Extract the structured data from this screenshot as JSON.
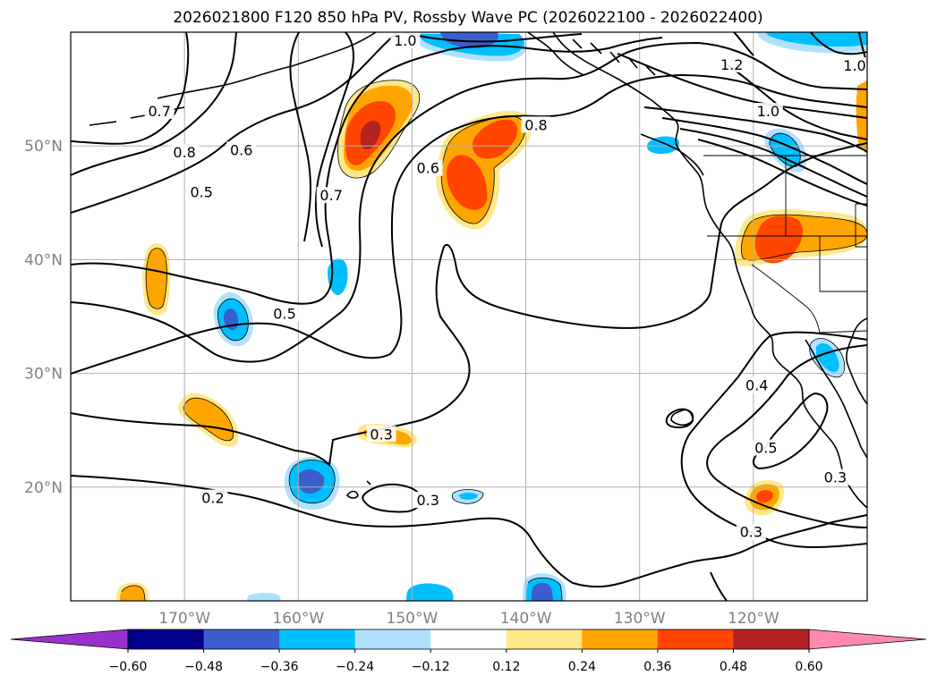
{
  "chart_data": {
    "type": "contour-map",
    "title": "2026021800 F120 850 hPa PV, Rossby Wave PC (2026022100 - 2026022400)",
    "map": {
      "lon_range": [
        -180,
        -110
      ],
      "lat_range": [
        10,
        60
      ],
      "lon_ticks": [
        -170,
        -160,
        -150,
        -140,
        -130,
        -120
      ],
      "lon_tick_labels": [
        "170°W",
        "160°W",
        "150°W",
        "140°W",
        "130°W",
        "120°W"
      ],
      "lat_ticks": [
        20,
        30,
        40,
        50
      ],
      "lat_tick_labels": [
        "20°N",
        "30°N",
        "40°N",
        "50°N"
      ],
      "grid": true
    },
    "pv_contour_labels": [
      {
        "text": "0.2",
        "lon": -167.5,
        "lat": 19.0
      },
      {
        "text": "0.3",
        "lon": -152.7,
        "lat": 24.6
      },
      {
        "text": "0.3",
        "lon": -148.6,
        "lat": 18.8
      },
      {
        "text": "0.3",
        "lon": -120.2,
        "lat": 16.0
      },
      {
        "text": "0.3",
        "lon": -112.8,
        "lat": 20.8
      },
      {
        "text": "0.4",
        "lon": -119.7,
        "lat": 28.9
      },
      {
        "text": "0.5",
        "lon": -161.2,
        "lat": 35.2
      },
      {
        "text": "0.5",
        "lon": -168.5,
        "lat": 45.9
      },
      {
        "text": "0.5",
        "lon": -118.9,
        "lat": 23.4
      },
      {
        "text": "0.6",
        "lon": -148.6,
        "lat": 48.0
      },
      {
        "text": "0.6",
        "lon": -165.0,
        "lat": 49.6
      },
      {
        "text": "0.7",
        "lon": -157.1,
        "lat": 45.6
      },
      {
        "text": "0.7",
        "lon": -172.2,
        "lat": 53.0
      },
      {
        "text": "0.8",
        "lon": -170.0,
        "lat": 49.4
      },
      {
        "text": "0.8",
        "lon": -139.1,
        "lat": 51.8
      },
      {
        "text": "1.0",
        "lon": -118.7,
        "lat": 53.0
      },
      {
        "text": "1.0",
        "lon": -150.6,
        "lat": 59.2
      },
      {
        "text": "1.2",
        "lon": -121.9,
        "lat": 57.1
      },
      {
        "text": "1.0",
        "lon": -111.1,
        "lat": 57.0
      }
    ],
    "colorbar": {
      "levels": [
        -0.6,
        -0.48,
        -0.36,
        -0.24,
        -0.12,
        0.12,
        0.24,
        0.36,
        0.48,
        0.6
      ],
      "tick_labels": [
        "−0.60",
        "−0.48",
        "−0.36",
        "−0.24",
        "−0.12",
        "0.12",
        "0.24",
        "0.36",
        "0.48",
        "0.60"
      ],
      "colors": [
        "#9932cc",
        "#00008b",
        "#3a5fcd",
        "#00bfff",
        "#b0e2ff",
        "#ffffff",
        "#ffe88a",
        "#ffa500",
        "#ff4500",
        "#b22222",
        "#ff88b0"
      ],
      "extend": "both"
    },
    "rossby_pc_anomalies": [
      {
        "sign": "positive",
        "max": 0.48,
        "lon": -153.5,
        "lat": 50.5
      },
      {
        "sign": "positive",
        "max": 0.36,
        "lon": -145.5,
        "lat": 47.0
      },
      {
        "sign": "positive",
        "max": 0.36,
        "lon": -142.8,
        "lat": 50.8
      },
      {
        "sign": "positive",
        "max": 0.36,
        "lon": -117.5,
        "lat": 41.8
      },
      {
        "sign": "positive",
        "max": 0.36,
        "lon": -119.5,
        "lat": 19.0
      },
      {
        "sign": "positive",
        "max": 0.24,
        "lon": -174.3,
        "lat": 38.4
      },
      {
        "sign": "positive",
        "max": 0.24,
        "lon": -167.5,
        "lat": 26.5
      },
      {
        "sign": "positive",
        "max": 0.24,
        "lon": -152.5,
        "lat": 24.5
      },
      {
        "sign": "positive",
        "max": 0.24,
        "lon": -175.5,
        "lat": 11.0
      },
      {
        "sign": "negative",
        "min": -0.48,
        "lon": -163.4,
        "lat": 35.2
      },
      {
        "sign": "negative",
        "min": -0.48,
        "lon": -158.6,
        "lat": 20.5
      },
      {
        "sign": "negative",
        "min": -0.48,
        "lon": -141.8,
        "lat": 11.0
      },
      {
        "sign": "negative",
        "min": -0.36,
        "lon": -116.0,
        "lat": 31.5
      },
      {
        "sign": "negative",
        "min": -0.36,
        "lon": -118.2,
        "lat": 49.7
      },
      {
        "sign": "negative",
        "min": -0.36,
        "lon": -157.5,
        "lat": 38.7
      },
      {
        "sign": "negative",
        "min": -0.24,
        "lon": -147.2,
        "lat": 11.0
      },
      {
        "sign": "negative",
        "min": -0.48,
        "lon": -143.2,
        "lat": 59.0
      },
      {
        "sign": "negative",
        "min": -0.36,
        "lon": -114.5,
        "lat": 59.3
      }
    ]
  }
}
